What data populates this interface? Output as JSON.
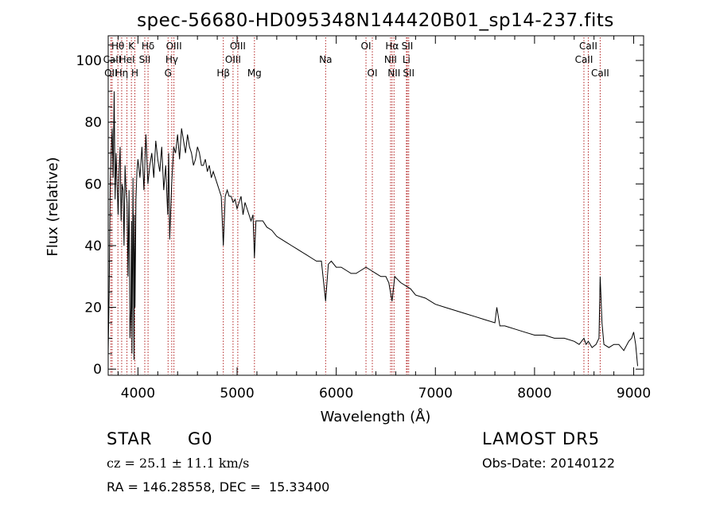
{
  "chart_data": {
    "type": "line",
    "title": "spec-56680-HD095348N144420B01_sp14-237.fits",
    "xlabel": "Wavelength (Å)",
    "ylabel": "Flux (relative)",
    "xlim": [
      3700,
      9100
    ],
    "ylim": [
      -2,
      108
    ],
    "xticks": [
      4000,
      5000,
      6000,
      7000,
      8000,
      9000
    ],
    "yticks": [
      0,
      20,
      40,
      60,
      80,
      100
    ],
    "grid": false,
    "line_color": "#000000",
    "marker_line_color": "#b22222",
    "series": [
      {
        "x": [
          3700,
          3710,
          3720,
          3730,
          3740,
          3750,
          3760,
          3770,
          3780,
          3790,
          3800,
          3810,
          3820,
          3830,
          3840,
          3850,
          3860,
          3870,
          3880,
          3890,
          3900,
          3910,
          3920,
          3930,
          3935,
          3940,
          3950,
          3960,
          3965,
          3970,
          3980,
          3990,
          4000,
          4020,
          4040,
          4060,
          4080,
          4100,
          4120,
          4140,
          4160,
          4180,
          4200,
          4220,
          4240,
          4260,
          4280,
          4300,
          4310,
          4320,
          4340,
          4360,
          4380,
          4400,
          4420,
          4440,
          4460,
          4480,
          4500,
          4520,
          4540,
          4560,
          4580,
          4600,
          4620,
          4640,
          4660,
          4680,
          4700,
          4720,
          4740,
          4760,
          4780,
          4800,
          4820,
          4840,
          4861,
          4880,
          4900,
          4920,
          4940,
          4960,
          4980,
          5000,
          5020,
          5040,
          5060,
          5080,
          5100,
          5120,
          5140,
          5160,
          5175,
          5190,
          5220,
          5260,
          5300,
          5350,
          5400,
          5450,
          5500,
          5550,
          5600,
          5650,
          5700,
          5750,
          5800,
          5850,
          5893,
          5920,
          5950,
          6000,
          6050,
          6100,
          6150,
          6200,
          6250,
          6300,
          6350,
          6400,
          6450,
          6500,
          6530,
          6563,
          6590,
          6620,
          6650,
          6700,
          6750,
          6800,
          6900,
          7000,
          7100,
          7200,
          7300,
          7400,
          7500,
          7600,
          7620,
          7650,
          7700,
          7800,
          7900,
          8000,
          8100,
          8200,
          8300,
          8400,
          8450,
          8498,
          8520,
          8542,
          8580,
          8620,
          8650,
          8662,
          8680,
          8700,
          8750,
          8800,
          8850,
          8900,
          8950,
          8980,
          9000,
          9020,
          9040
        ],
        "y": [
          5,
          25,
          60,
          70,
          78,
          62,
          90,
          55,
          70,
          60,
          50,
          64,
          72,
          48,
          60,
          58,
          40,
          66,
          58,
          54,
          30,
          58,
          10,
          20,
          48,
          5,
          62,
          3,
          50,
          20,
          55,
          64,
          68,
          62,
          72,
          58,
          76,
          60,
          66,
          70,
          62,
          74,
          68,
          64,
          72,
          58,
          66,
          50,
          70,
          42,
          60,
          72,
          70,
          76,
          68,
          78,
          74,
          70,
          76,
          72,
          70,
          66,
          68,
          72,
          70,
          66,
          66,
          68,
          64,
          66,
          62,
          64,
          62,
          60,
          58,
          56,
          40,
          56,
          58,
          56,
          56,
          54,
          55,
          52,
          54,
          56,
          50,
          54,
          52,
          50,
          48,
          50,
          36,
          48,
          48,
          48,
          46,
          45,
          43,
          42,
          41,
          40,
          39,
          38,
          37,
          36,
          35,
          35,
          22,
          34,
          35,
          33,
          33,
          32,
          31,
          31,
          32,
          33,
          32,
          31,
          30,
          30,
          28,
          22,
          30,
          29,
          28,
          27,
          26,
          24,
          23,
          21,
          20,
          19,
          18,
          17,
          16,
          15,
          20,
          14,
          14,
          13,
          12,
          11,
          11,
          10,
          10,
          9,
          8,
          10,
          8,
          9,
          7,
          8,
          10,
          30,
          15,
          8,
          7,
          8,
          8,
          6,
          9,
          10,
          12,
          8,
          1
        ]
      }
    ],
    "annotations": [
      {
        "label": "Hθ",
        "x": 3798,
        "row": 0
      },
      {
        "label": "CaII",
        "x": 3740,
        "row": 1
      },
      {
        "label": "OII",
        "x": 3727,
        "row": 2
      },
      {
        "label": "K",
        "x": 3934,
        "row": 0
      },
      {
        "label": "HeI",
        "x": 3889,
        "row": 1
      },
      {
        "label": "Hη",
        "x": 3836,
        "row": 2
      },
      {
        "label": "Hδ",
        "x": 4102,
        "row": 0
      },
      {
        "label": "SII",
        "x": 4069,
        "row": 1
      },
      {
        "label": "H",
        "x": 3969,
        "row": 2
      },
      {
        "label": "OIII",
        "x": 4363,
        "row": 0
      },
      {
        "label": "Hγ",
        "x": 4341,
        "row": 1
      },
      {
        "label": "G",
        "x": 4304,
        "row": 2
      },
      {
        "label": "OIII",
        "x": 5007,
        "row": 0
      },
      {
        "label": "OIII",
        "x": 4959,
        "row": 1
      },
      {
        "label": "Hβ",
        "x": 4861,
        "row": 2
      },
      {
        "label": "Mg",
        "x": 5175,
        "row": 2
      },
      {
        "label": "Na",
        "x": 5893,
        "row": 1
      },
      {
        "label": "OI",
        "x": 6300,
        "row": 0
      },
      {
        "label": "OI",
        "x": 6364,
        "row": 2
      },
      {
        "label": "Hα",
        "x": 6563,
        "row": 0
      },
      {
        "label": "NII",
        "x": 6548,
        "row": 1
      },
      {
        "label": "NII",
        "x": 6583,
        "row": 2
      },
      {
        "label": "SII",
        "x": 6717,
        "row": 0
      },
      {
        "label": "Li",
        "x": 6708,
        "row": 1
      },
      {
        "label": "SII",
        "x": 6731,
        "row": 2
      },
      {
        "label": "CaII",
        "x": 8542,
        "row": 0
      },
      {
        "label": "CaII",
        "x": 8498,
        "row": 1
      },
      {
        "label": "CaII",
        "x": 8662,
        "row": 2
      }
    ]
  },
  "info": {
    "class": "STAR",
    "subclass": "G0",
    "survey": "LAMOST DR5",
    "cz": "cz = 25.1 ± 11.1 km/s",
    "obs_date": "Obs-Date: 20140122",
    "coords": "RA = 146.28558, DEC =  15.33400"
  }
}
